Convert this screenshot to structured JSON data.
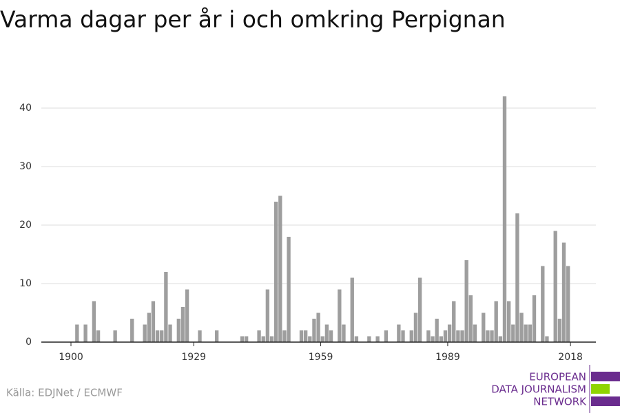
{
  "chart_data": {
    "type": "bar",
    "title": "Varma dagar per år i och omkring Perpignan",
    "source": "Källa: EDJNet / ECMWF",
    "logo": [
      "EUROPEAN",
      "DATA JOURNALISM",
      "NETWORK"
    ],
    "color": "#9e9e9e",
    "x": [
      1900,
      1901,
      1902,
      1903,
      1904,
      1905,
      1906,
      1907,
      1908,
      1909,
      1910,
      1911,
      1912,
      1913,
      1914,
      1915,
      1916,
      1917,
      1918,
      1919,
      1920,
      1921,
      1922,
      1923,
      1924,
      1925,
      1926,
      1927,
      1928,
      1929,
      1930,
      1931,
      1932,
      1933,
      1934,
      1935,
      1936,
      1937,
      1938,
      1939,
      1940,
      1941,
      1942,
      1943,
      1944,
      1945,
      1946,
      1947,
      1948,
      1949,
      1950,
      1951,
      1952,
      1953,
      1954,
      1955,
      1956,
      1957,
      1958,
      1959,
      1960,
      1961,
      1962,
      1963,
      1964,
      1965,
      1966,
      1967,
      1968,
      1969,
      1970,
      1971,
      1972,
      1973,
      1974,
      1975,
      1976,
      1977,
      1978,
      1979,
      1980,
      1981,
      1982,
      1983,
      1984,
      1985,
      1986,
      1987,
      1988,
      1989,
      1990,
      1991,
      1992,
      1993,
      1994,
      1995,
      1996,
      1997,
      1998,
      1999,
      2000,
      2001,
      2002,
      2003,
      2004,
      2005,
      2006,
      2007,
      2008,
      2009,
      2010,
      2011,
      2012,
      2013,
      2014,
      2015,
      2016,
      2017
    ],
    "values": [
      0,
      3,
      0,
      3,
      0,
      7,
      2,
      0,
      0,
      0,
      2,
      0,
      0,
      0,
      4,
      0,
      0,
      3,
      5,
      7,
      2,
      2,
      12,
      3,
      0,
      4,
      6,
      9,
      0,
      0,
      2,
      0,
      0,
      0,
      2,
      0,
      0,
      0,
      0,
      0,
      1,
      1,
      0,
      0,
      2,
      1,
      9,
      1,
      24,
      25,
      2,
      18,
      0,
      0,
      2,
      2,
      1,
      4,
      5,
      1,
      3,
      2,
      0,
      9,
      3,
      0,
      11,
      1,
      0,
      0,
      1,
      0,
      1,
      0,
      2,
      0,
      0,
      3,
      2,
      0,
      2,
      5,
      11,
      0,
      2,
      1,
      4,
      1,
      2,
      3,
      7,
      2,
      2,
      14,
      8,
      3,
      0,
      5,
      2,
      2,
      7,
      1,
      42,
      7,
      3,
      22,
      5,
      3,
      3,
      8,
      0,
      13,
      1,
      0,
      19,
      4,
      17,
      13
    ],
    "xlim": [
      1893,
      2024
    ],
    "xticks": [
      1900,
      1929,
      1959,
      1989,
      2018
    ],
    "ylim": [
      0,
      44
    ],
    "yticks": [
      0,
      10,
      20,
      30,
      40
    ],
    "grid": true
  }
}
